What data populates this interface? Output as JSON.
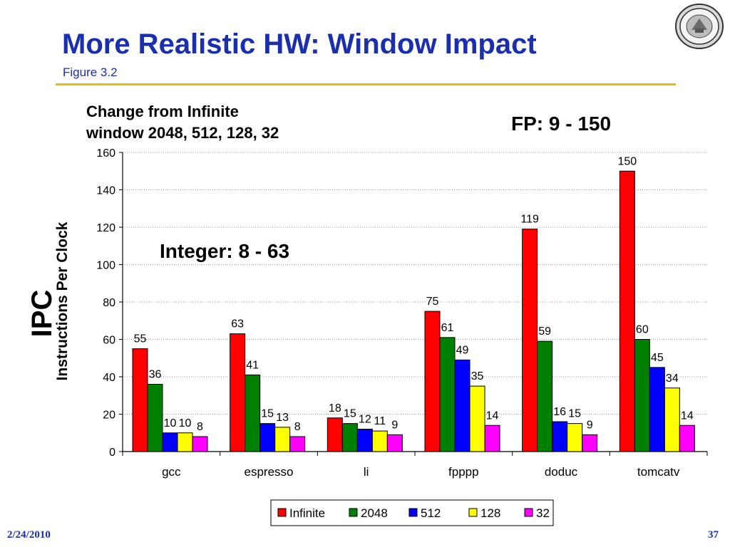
{
  "slide": {
    "title": "More Realistic HW: Window Impact",
    "subtitle": "Figure 3.2",
    "date": "2/24/2010",
    "page_number": "37",
    "accent_color": "#1a2fb0",
    "rule_color": "#e0c000"
  },
  "chart_data": {
    "type": "bar",
    "annotations": [
      "Change from Infinite",
      "window 2048, 512, 128, 32",
      "FP: 9 - 150",
      "Integer: 8 - 63"
    ],
    "ylabel_large": "IPC",
    "ylabel_small": "Instructions Per Clock",
    "xlabel": "",
    "ylim": [
      0,
      160
    ],
    "yticks": [
      0,
      20,
      40,
      60,
      80,
      100,
      120,
      140,
      160
    ],
    "grid": true,
    "legend_position": "bottom",
    "categories": [
      "gcc",
      "espresso",
      "li",
      "fpppp",
      "doduc",
      "tomcatv"
    ],
    "series": [
      {
        "name": "Infinite",
        "color": "#ff0000",
        "values": [
          55,
          63,
          18,
          75,
          119,
          150
        ]
      },
      {
        "name": "2048",
        "color": "#008000",
        "values": [
          36,
          41,
          15,
          61,
          59,
          60
        ]
      },
      {
        "name": "512",
        "color": "#0000ff",
        "values": [
          10,
          15,
          12,
          49,
          16,
          45
        ]
      },
      {
        "name": "128",
        "color": "#ffff00",
        "values": [
          10,
          13,
          11,
          35,
          15,
          34
        ]
      },
      {
        "name": "32",
        "color": "#ff00ff",
        "values": [
          8,
          8,
          9,
          14,
          9,
          14
        ]
      }
    ]
  }
}
